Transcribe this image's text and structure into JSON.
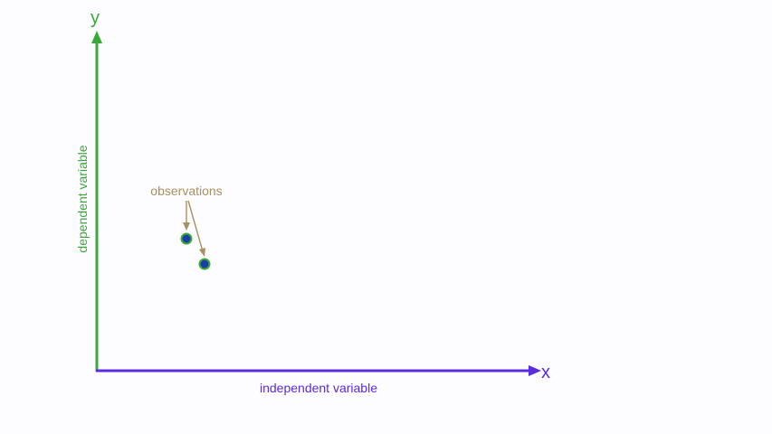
{
  "axes": {
    "y_letter": "y",
    "x_letter": "x",
    "y_label": "dependent variable",
    "x_label": "independent variable"
  },
  "annotation": {
    "text": "observations"
  },
  "colors": {
    "y_axis": "#3aa83a",
    "x_axis": "#5a2be0",
    "annotation": "#a89060",
    "point_fill": "#1a3ea8",
    "point_ring": "#3aa83a",
    "background": "#fdfcfe"
  }
}
